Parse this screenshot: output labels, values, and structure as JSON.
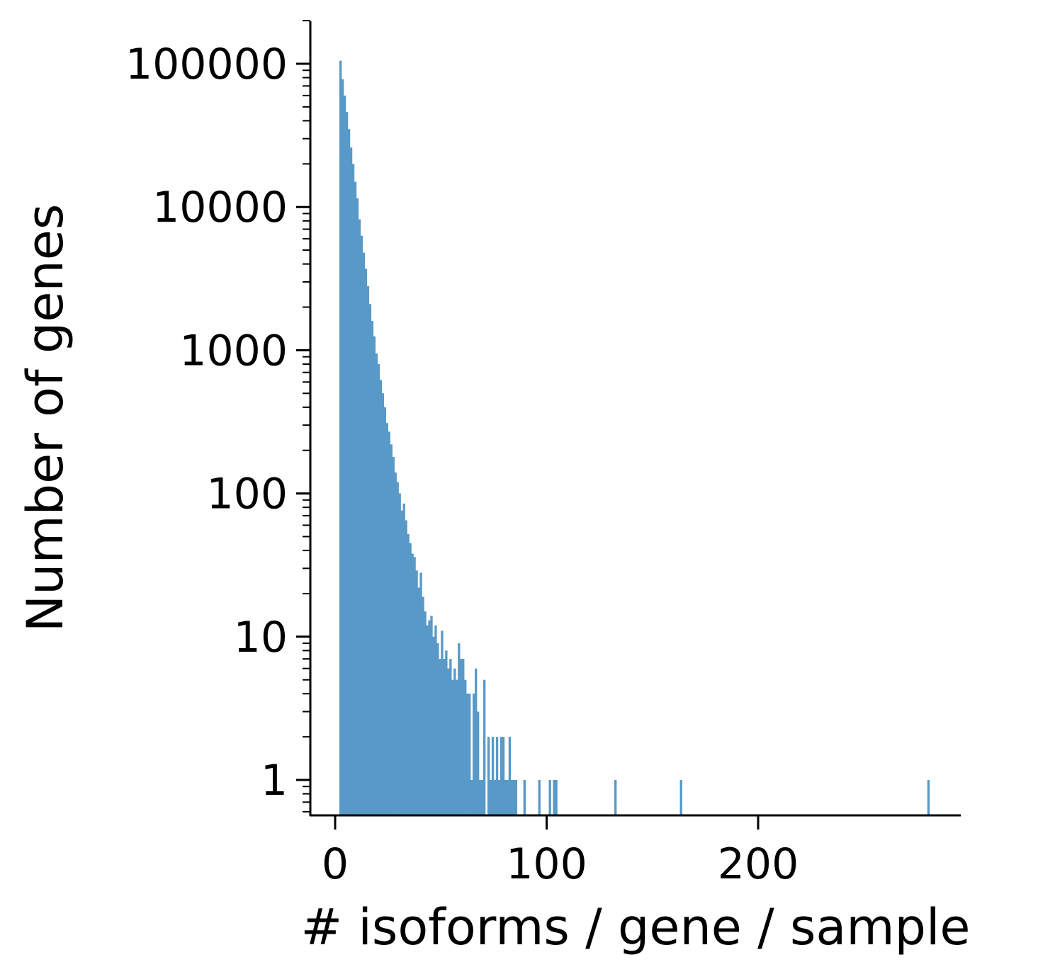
{
  "chart_data": {
    "type": "bar",
    "title": "",
    "xlabel": "# isoforms / gene / sample",
    "ylabel": "Number of genes",
    "x_scale": "linear",
    "y_scale": "log",
    "xlim": [
      -11,
      295
    ],
    "ylim": [
      0.55,
      200000
    ],
    "x_ticks": [
      0,
      100,
      200
    ],
    "x_tick_labels": [
      "0",
      "100",
      "200"
    ],
    "y_ticks": [
      1,
      10,
      100,
      1000,
      10000,
      100000
    ],
    "y_tick_labels": [
      "1",
      "10",
      "100",
      "1000",
      "10000",
      "100000"
    ],
    "grid": false,
    "legend": "none",
    "bar_color": "#5899c7",
    "bin_width": 1,
    "bins": [
      {
        "x": 2,
        "y": 105000
      },
      {
        "x": 3,
        "y": 78000
      },
      {
        "x": 4,
        "y": 60000
      },
      {
        "x": 5,
        "y": 46000
      },
      {
        "x": 6,
        "y": 35000
      },
      {
        "x": 7,
        "y": 26000
      },
      {
        "x": 8,
        "y": 20000
      },
      {
        "x": 9,
        "y": 15000
      },
      {
        "x": 10,
        "y": 11500
      },
      {
        "x": 11,
        "y": 8200
      },
      {
        "x": 12,
        "y": 6300
      },
      {
        "x": 13,
        "y": 4800
      },
      {
        "x": 14,
        "y": 3700
      },
      {
        "x": 15,
        "y": 2800
      },
      {
        "x": 16,
        "y": 2100
      },
      {
        "x": 17,
        "y": 1600
      },
      {
        "x": 18,
        "y": 1250
      },
      {
        "x": 19,
        "y": 950
      },
      {
        "x": 20,
        "y": 800
      },
      {
        "x": 21,
        "y": 620
      },
      {
        "x": 22,
        "y": 500
      },
      {
        "x": 23,
        "y": 400
      },
      {
        "x": 24,
        "y": 310
      },
      {
        "x": 25,
        "y": 270
      },
      {
        "x": 26,
        "y": 220
      },
      {
        "x": 27,
        "y": 180
      },
      {
        "x": 28,
        "y": 140
      },
      {
        "x": 29,
        "y": 120
      },
      {
        "x": 30,
        "y": 100
      },
      {
        "x": 31,
        "y": 76
      },
      {
        "x": 32,
        "y": 85
      },
      {
        "x": 33,
        "y": 65
      },
      {
        "x": 34,
        "y": 52
      },
      {
        "x": 35,
        "y": 45
      },
      {
        "x": 36,
        "y": 38
      },
      {
        "x": 37,
        "y": 36
      },
      {
        "x": 38,
        "y": 29
      },
      {
        "x": 39,
        "y": 22
      },
      {
        "x": 40,
        "y": 28
      },
      {
        "x": 41,
        "y": 19
      },
      {
        "x": 42,
        "y": 15
      },
      {
        "x": 43,
        "y": 12
      },
      {
        "x": 44,
        "y": 13
      },
      {
        "x": 45,
        "y": 14
      },
      {
        "x": 46,
        "y": 10
      },
      {
        "x": 47,
        "y": 12
      },
      {
        "x": 48,
        "y": 9
      },
      {
        "x": 49,
        "y": 7
      },
      {
        "x": 50,
        "y": 11
      },
      {
        "x": 51,
        "y": 7
      },
      {
        "x": 52,
        "y": 8
      },
      {
        "x": 53,
        "y": 6
      },
      {
        "x": 54,
        "y": 7
      },
      {
        "x": 55,
        "y": 5
      },
      {
        "x": 56,
        "y": 6
      },
      {
        "x": 57,
        "y": 5
      },
      {
        "x": 58,
        "y": 9
      },
      {
        "x": 59,
        "y": 7
      },
      {
        "x": 60,
        "y": 7
      },
      {
        "x": 61,
        "y": 5
      },
      {
        "x": 62,
        "y": 4
      },
      {
        "x": 63,
        "y": 4
      },
      {
        "x": 64,
        "y": 1
      },
      {
        "x": 65,
        "y": 4
      },
      {
        "x": 66,
        "y": 6
      },
      {
        "x": 67,
        "y": 3
      },
      {
        "x": 68,
        "y": 1
      },
      {
        "x": 69,
        "y": 1
      },
      {
        "x": 70,
        "y": 5
      },
      {
        "x": 71,
        "y": 0
      },
      {
        "x": 72,
        "y": 2
      },
      {
        "x": 73,
        "y": 1
      },
      {
        "x": 74,
        "y": 2
      },
      {
        "x": 75,
        "y": 1
      },
      {
        "x": 76,
        "y": 2
      },
      {
        "x": 77,
        "y": 1
      },
      {
        "x": 78,
        "y": 2
      },
      {
        "x": 79,
        "y": 2
      },
      {
        "x": 80,
        "y": 1
      },
      {
        "x": 81,
        "y": 1
      },
      {
        "x": 82,
        "y": 2
      },
      {
        "x": 83,
        "y": 1
      },
      {
        "x": 84,
        "y": 1
      },
      {
        "x": 85,
        "y": 1
      },
      {
        "x": 86,
        "y": 0
      },
      {
        "x": 87,
        "y": 0
      },
      {
        "x": 88,
        "y": 0
      },
      {
        "x": 89,
        "y": 1
      },
      {
        "x": 90,
        "y": 0
      },
      {
        "x": 91,
        "y": 0
      },
      {
        "x": 92,
        "y": 0
      },
      {
        "x": 93,
        "y": 0
      },
      {
        "x": 94,
        "y": 0
      },
      {
        "x": 95,
        "y": 0
      },
      {
        "x": 96,
        "y": 1
      },
      {
        "x": 97,
        "y": 0
      },
      {
        "x": 98,
        "y": 0
      },
      {
        "x": 99,
        "y": 0
      },
      {
        "x": 100,
        "y": 0
      },
      {
        "x": 101,
        "y": 1
      },
      {
        "x": 102,
        "y": 0
      },
      {
        "x": 103,
        "y": 1
      },
      {
        "x": 104,
        "y": 1
      },
      {
        "x": 132,
        "y": 1
      },
      {
        "x": 163,
        "y": 1
      },
      {
        "x": 280,
        "y": 1
      }
    ]
  }
}
